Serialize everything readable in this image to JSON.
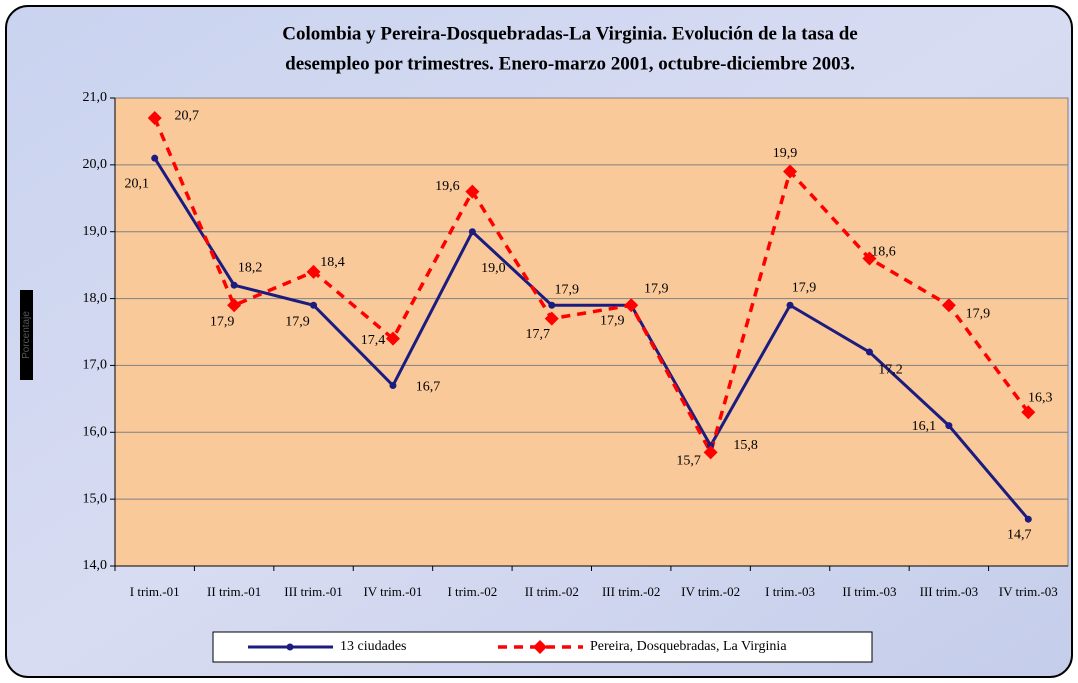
{
  "chart_data": {
    "type": "line",
    "title": [
      "Colombia y Pereira-Dosquebradas-La Virginia. Evolución de la tasa de",
      "desempleo por trimestres. Enero-marzo 2001, octubre-diciembre 2003."
    ],
    "y_label": "Porcentaje",
    "categories": [
      "I trim.-01",
      "II trim.-01",
      "III trim.-01",
      "IV trim.-01",
      "I trim.-02",
      "II trim.-02",
      "III trim.-02",
      "IV trim.-02",
      "I trim.-03",
      "II trim.-03",
      "III trim.-03",
      "IV trim.-03"
    ],
    "series": [
      {
        "name": "13 ciudades",
        "color": "#1c1c80",
        "dashed": false,
        "marker": "circle",
        "values": [
          20.1,
          18.2,
          17.9,
          16.7,
          19.0,
          17.9,
          17.9,
          15.8,
          17.9,
          17.2,
          16.1,
          14.7
        ],
        "value_labels": [
          "20,1",
          "18,2",
          "17,9",
          "16,7",
          "19,0",
          "17,9",
          "17,9",
          "15,8",
          "17,9",
          "17,2",
          "16,1",
          "14,7"
        ]
      },
      {
        "name": "Pereira, Dosquebradas, La Virginia",
        "color": "#ff0000",
        "dashed": true,
        "marker": "diamond",
        "values": [
          20.7,
          17.9,
          18.4,
          17.4,
          19.6,
          17.7,
          17.9,
          15.7,
          19.9,
          18.6,
          17.9,
          16.3
        ],
        "value_labels": [
          "20,7",
          "17,9",
          "18,4",
          "17,4",
          "19,6",
          "17,7",
          "17,9",
          "15,7",
          "19,9",
          "18,6",
          "17,9",
          "16,3"
        ]
      }
    ],
    "ylim": [
      14,
      21
    ],
    "yticks": [
      {
        "value": 14,
        "label": "14,0"
      },
      {
        "value": 15,
        "label": "15,0"
      },
      {
        "value": 16,
        "label": "16,0"
      },
      {
        "value": 17,
        "label": "17,0"
      },
      {
        "value": 18,
        "label": "18,0"
      },
      {
        "value": 19,
        "label": "19,0"
      },
      {
        "value": 20,
        "label": "20,0"
      },
      {
        "value": 21,
        "label": "21,0"
      }
    ],
    "grid": true,
    "legend": "bottom"
  }
}
